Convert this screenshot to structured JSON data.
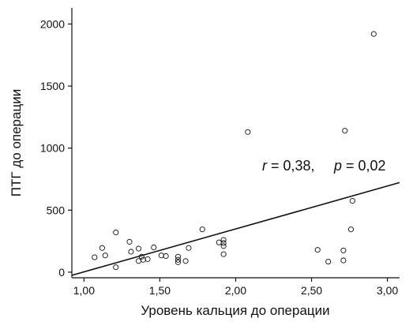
{
  "chart_data": {
    "type": "scatter",
    "xlabel": "Уровень кальция до операции",
    "ylabel": "ПТГ до операции",
    "xlim": [
      0.92,
      3.08
    ],
    "ylim": [
      -45,
      2130
    ],
    "x_ticks": [
      {
        "value": 1.0,
        "label": "1,00"
      },
      {
        "value": 1.5,
        "label": "1,50"
      },
      {
        "value": 2.0,
        "label": "2,00"
      },
      {
        "value": 2.5,
        "label": "2,50"
      },
      {
        "value": 3.0,
        "label": "3,00"
      }
    ],
    "y_ticks": [
      {
        "value": 0,
        "label": "0"
      },
      {
        "value": 500,
        "label": "500"
      },
      {
        "value": 1000,
        "label": "1000"
      },
      {
        "value": 1500,
        "label": "1500"
      },
      {
        "value": 2000,
        "label": "2000"
      }
    ],
    "grid": false,
    "points": [
      {
        "x": 1.07,
        "y": 120
      },
      {
        "x": 1.12,
        "y": 195
      },
      {
        "x": 1.14,
        "y": 135
      },
      {
        "x": 1.21,
        "y": 320
      },
      {
        "x": 1.21,
        "y": 40
      },
      {
        "x": 1.3,
        "y": 245
      },
      {
        "x": 1.31,
        "y": 165
      },
      {
        "x": 1.36,
        "y": 190
      },
      {
        "x": 1.36,
        "y": 90
      },
      {
        "x": 1.38,
        "y": 125
      },
      {
        "x": 1.39,
        "y": 100
      },
      {
        "x": 1.42,
        "y": 105
      },
      {
        "x": 1.46,
        "y": 200
      },
      {
        "x": 1.51,
        "y": 135
      },
      {
        "x": 1.54,
        "y": 130
      },
      {
        "x": 1.62,
        "y": 125
      },
      {
        "x": 1.62,
        "y": 100
      },
      {
        "x": 1.62,
        "y": 80
      },
      {
        "x": 1.67,
        "y": 90
      },
      {
        "x": 1.69,
        "y": 195
      },
      {
        "x": 1.78,
        "y": 345
      },
      {
        "x": 1.89,
        "y": 240
      },
      {
        "x": 1.92,
        "y": 260
      },
      {
        "x": 1.92,
        "y": 235
      },
      {
        "x": 1.92,
        "y": 210
      },
      {
        "x": 1.92,
        "y": 145
      },
      {
        "x": 2.08,
        "y": 1130
      },
      {
        "x": 2.54,
        "y": 180
      },
      {
        "x": 2.61,
        "y": 85
      },
      {
        "x": 2.71,
        "y": 175
      },
      {
        "x": 2.71,
        "y": 95
      },
      {
        "x": 2.72,
        "y": 1140
      },
      {
        "x": 2.76,
        "y": 345
      },
      {
        "x": 2.77,
        "y": 575
      },
      {
        "x": 2.91,
        "y": 1920
      }
    ],
    "regression_line": {
      "x": [
        0.92,
        3.08
      ],
      "y": [
        -25,
        722
      ]
    },
    "annotation": {
      "r_symbol": "r",
      "r_text": " = 0,38,",
      "p_symbol": "p",
      "p_text": " = 0,02"
    }
  },
  "colors": {
    "axis": "#111111",
    "marker": "#111111",
    "line": "#111111",
    "background": "#ffffff"
  }
}
